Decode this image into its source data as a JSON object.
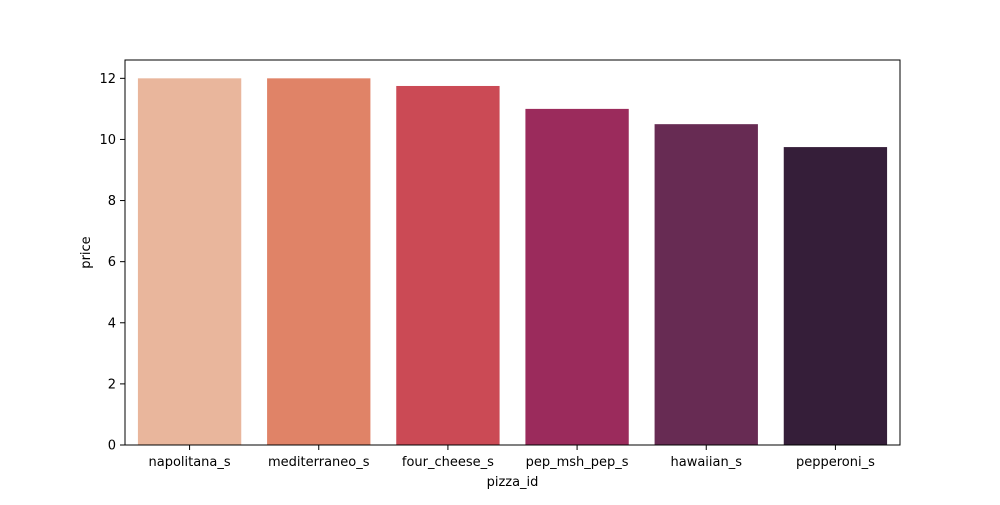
{
  "chart_data": {
    "type": "bar",
    "title": "",
    "xlabel": "pizza_id",
    "ylabel": "price",
    "ylim": [
      0,
      12.6
    ],
    "yticks": [
      0,
      2,
      4,
      6,
      8,
      10,
      12
    ],
    "grid": false,
    "legend": "none",
    "categories": [
      "napolitana_s",
      "mediterraneo_s",
      "four_cheese_s",
      "pep_msh_pep_s",
      "hawaiian_s",
      "pepperoni_s"
    ],
    "values": [
      12.0,
      12.0,
      11.75,
      11.0,
      10.5,
      9.75
    ],
    "colors": [
      "#e9b69c",
      "#e08367",
      "#cb4a55",
      "#9b2b5c",
      "#672b53",
      "#351e39"
    ]
  }
}
